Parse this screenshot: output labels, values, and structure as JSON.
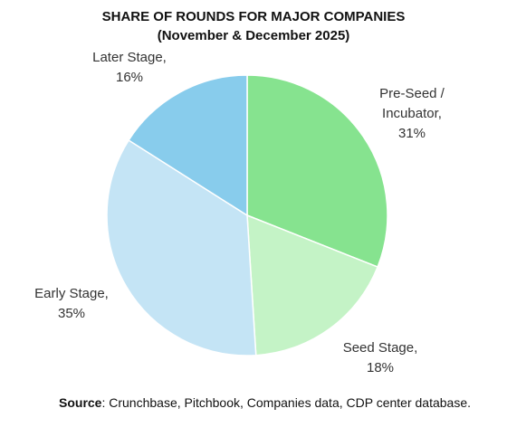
{
  "chart_data": {
    "type": "pie",
    "title": "SHARE OF ROUNDS  FOR MAJOR COMPANIES",
    "subtitle": "(November & December 2025)",
    "categories": [
      "Pre-Seed / Incubator",
      "Seed Stage",
      "Early Stage",
      "Later Stage"
    ],
    "label_lines": [
      [
        "Pre-Seed /",
        "Incubator,"
      ],
      [
        "Seed Stage,"
      ],
      [
        "Early Stage,"
      ],
      [
        "Later Stage,"
      ]
    ],
    "values": [
      31,
      18,
      35,
      16
    ],
    "value_labels": [
      "31%",
      "18%",
      "35%",
      "16%"
    ],
    "colors": [
      "#86e38f",
      "#c4f3c6",
      "#c4e4f5",
      "#88ccec"
    ],
    "start_angle_deg": 0,
    "direction": "clockwise",
    "legend": "none"
  },
  "source": {
    "label": "Source",
    "text": ": Crunchbase, Pitchbook, Companies data, CDP center database."
  }
}
